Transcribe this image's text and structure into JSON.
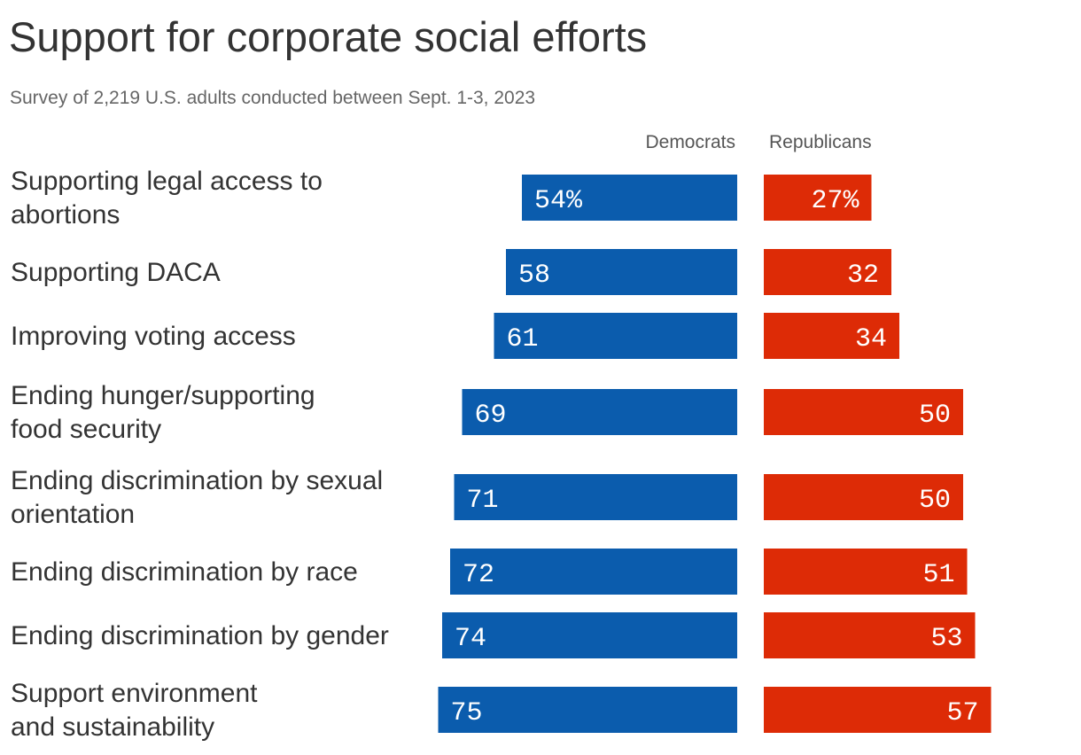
{
  "title": "Support for corporate social efforts",
  "subtitle": "Survey of 2,219 U.S. adults conducted between Sept. 1-3, 2023",
  "colors": {
    "democrats": "#0b5cad",
    "republicans": "#dd2b06"
  },
  "chart_data": {
    "type": "bar",
    "orientation": "horizontal",
    "unit": "%",
    "categories": [
      "Supporting legal access to abortions",
      "Supporting DACA",
      "Improving voting access",
      "Ending hunger/supporting food security",
      "Ending discrimination by sexual orientation",
      "Ending discrimination by race",
      "Ending discrimination by gender",
      "Support environment and sustainability"
    ],
    "category_lines": [
      [
        "Supporting legal access to",
        "abortions"
      ],
      [
        "Supporting DACA"
      ],
      [
        "Improving voting access"
      ],
      [
        "Ending hunger/supporting",
        "food security"
      ],
      [
        "Ending discrimination by sexual",
        "orientation"
      ],
      [
        "Ending discrimination by race"
      ],
      [
        "Ending discrimination by gender"
      ],
      [
        "Support environment",
        "and sustainability"
      ]
    ],
    "series": [
      {
        "name": "Democrats",
        "values": [
          54,
          58,
          61,
          69,
          71,
          72,
          74,
          75
        ],
        "labels": [
          "54%",
          "58",
          "61",
          "69",
          "71",
          "72",
          "74",
          "75"
        ]
      },
      {
        "name": "Republicans",
        "values": [
          27,
          32,
          34,
          50,
          50,
          51,
          53,
          57
        ],
        "labels": [
          "27%",
          "32",
          "34",
          "50",
          "50",
          "51",
          "53",
          "57"
        ]
      }
    ],
    "grid": false,
    "legend": "column headers above bars"
  }
}
